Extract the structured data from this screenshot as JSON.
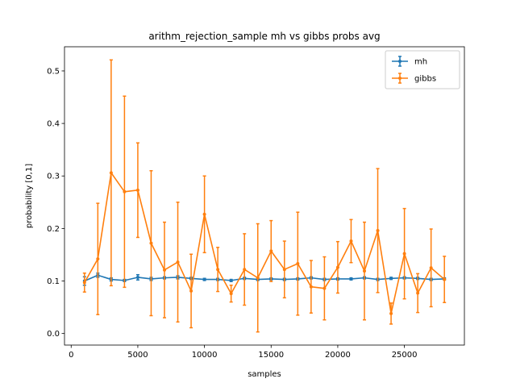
{
  "chart_data": {
    "type": "line",
    "title": "arithm_rejection_sample mh vs gibbs probs avg",
    "xlabel": "samples",
    "ylabel": "probability [0,1]",
    "xlim": [
      -500,
      29500
    ],
    "ylim": [
      -0.022,
      0.546
    ],
    "xticks": [
      0,
      5000,
      10000,
      15000,
      20000,
      25000
    ],
    "yticks": [
      0.0,
      0.1,
      0.2,
      0.3,
      0.4,
      0.5
    ],
    "ytick_labels": [
      "0.0",
      "0.1",
      "0.2",
      "0.3",
      "0.4",
      "0.5"
    ],
    "legend_position": "top-right",
    "error_bars": true,
    "x": [
      1000,
      2000,
      3000,
      4000,
      5000,
      6000,
      7000,
      8000,
      9000,
      10000,
      11000,
      12000,
      13000,
      14000,
      15000,
      16000,
      17000,
      18000,
      19000,
      20000,
      21000,
      22000,
      23000,
      24000,
      25000,
      26000,
      27000,
      28000
    ],
    "series": [
      {
        "name": "mh",
        "color": "#1f77b4",
        "values": [
          0.1,
          0.111,
          0.103,
          0.101,
          0.107,
          0.104,
          0.106,
          0.107,
          0.105,
          0.103,
          0.103,
          0.101,
          0.105,
          0.103,
          0.104,
          0.103,
          0.104,
          0.106,
          0.103,
          0.104,
          0.104,
          0.106,
          0.103,
          0.105,
          0.106,
          0.105,
          0.103,
          0.104
        ],
        "errors": [
          0.008,
          0.004,
          0.003,
          0.002,
          0.005,
          0.003,
          0.002,
          0.003,
          0.002,
          0.002,
          0.002,
          0.002,
          0.002,
          0.002,
          0.002,
          0.002,
          0.002,
          0.002,
          0.002,
          0.002,
          0.002,
          0.002,
          0.002,
          0.002,
          0.002,
          0.002,
          0.002,
          0.002
        ]
      },
      {
        "name": "gibbs",
        "color": "#ff7f0e",
        "values": [
          0.097,
          0.142,
          0.306,
          0.27,
          0.273,
          0.172,
          0.121,
          0.136,
          0.081,
          0.227,
          0.122,
          0.076,
          0.122,
          0.106,
          0.157,
          0.122,
          0.133,
          0.089,
          0.086,
          0.126,
          0.176,
          0.119,
          0.196,
          0.038,
          0.152,
          0.077,
          0.125,
          0.103
        ],
        "errors": [
          0.018,
          0.106,
          0.215,
          0.182,
          0.09,
          0.138,
          0.091,
          0.114,
          0.07,
          0.073,
          0.042,
          0.016,
          0.068,
          0.103,
          0.058,
          0.054,
          0.098,
          0.05,
          0.06,
          0.049,
          0.041,
          0.093,
          0.118,
          0.02,
          0.086,
          0.037,
          0.074,
          0.044
        ]
      }
    ]
  }
}
